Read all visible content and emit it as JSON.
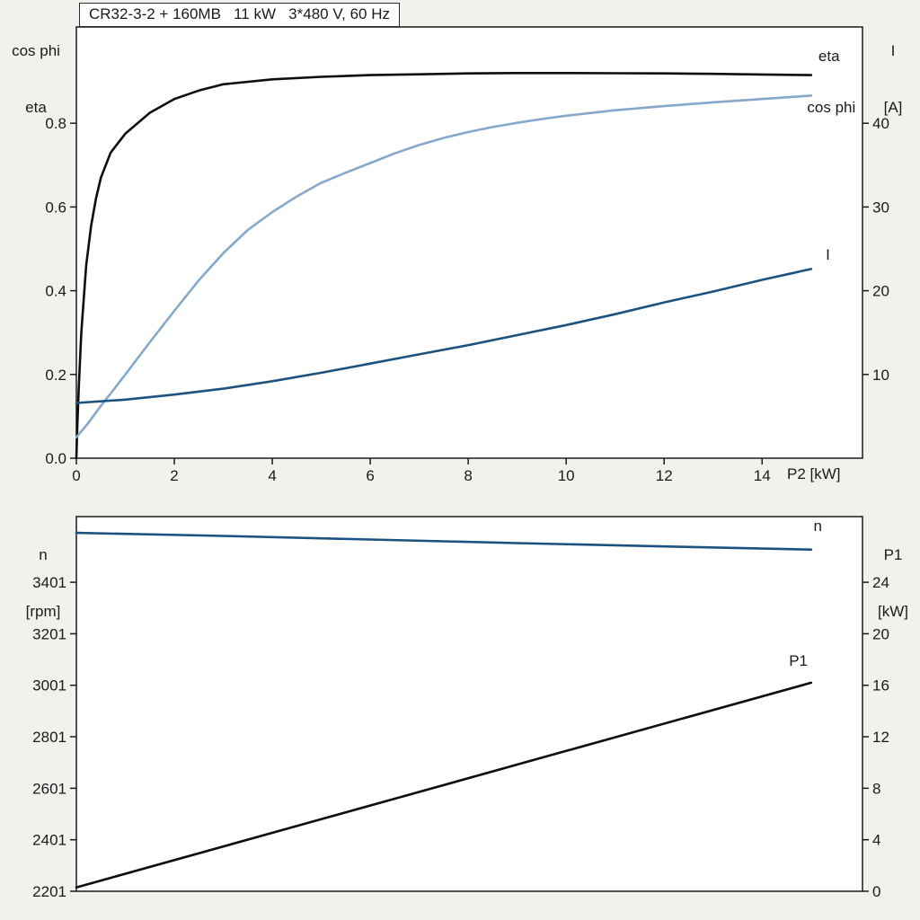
{
  "page": {
    "background": "#f1f2ee",
    "plot_background": "#ffffff",
    "axis_color": "#1a1a1a"
  },
  "title_box": "CR32-3-2 + 160MB   11 kW   3*480 V, 60 Hz",
  "chart_data": [
    {
      "type": "line",
      "title": "CR32-3-2 + 160MB   11 kW   3*480 V, 60 Hz",
      "grid": false,
      "legend_position": "curve-end-labels",
      "x_axis": {
        "label": "P2 [kW]",
        "min": 0,
        "max": 16.05,
        "tick_values": [
          0,
          2,
          4,
          6,
          8,
          10,
          12,
          14
        ],
        "ticks": [
          "0",
          "2",
          "4",
          "6",
          "8",
          "10",
          "12",
          "14"
        ]
      },
      "y_left": {
        "label_lines": [
          "cos phi",
          "eta"
        ],
        "min": 0,
        "max": 1.03,
        "tick_values": [
          0,
          0.2,
          0.4,
          0.6,
          0.8
        ],
        "ticks": [
          "0.0",
          "0.2",
          "0.4",
          "0.6",
          "0.8"
        ]
      },
      "y_right": {
        "label_lines": [
          "I",
          "[A]"
        ],
        "min": 0,
        "max": 51.5,
        "tick_values": [
          10,
          20,
          30,
          40
        ],
        "ticks": [
          "10",
          "20",
          "30",
          "40"
        ]
      },
      "series": [
        {
          "name": "eta",
          "axis": "left",
          "color": "#0d0d0d",
          "label": "eta",
          "label_color": "#0d0d0d",
          "label_pos": [
            15.15,
            0.948
          ],
          "points": [
            [
              0,
              0
            ],
            [
              0.02,
              0.08
            ],
            [
              0.05,
              0.17
            ],
            [
              0.1,
              0.3
            ],
            [
              0.2,
              0.46
            ],
            [
              0.3,
              0.555
            ],
            [
              0.4,
              0.62
            ],
            [
              0.5,
              0.67
            ],
            [
              0.7,
              0.73
            ],
            [
              1,
              0.775
            ],
            [
              1.5,
              0.825
            ],
            [
              2,
              0.858
            ],
            [
              2.5,
              0.878
            ],
            [
              3,
              0.893
            ],
            [
              4,
              0.905
            ],
            [
              5,
              0.911
            ],
            [
              6,
              0.915
            ],
            [
              7,
              0.917
            ],
            [
              8,
              0.919
            ],
            [
              9,
              0.92
            ],
            [
              10,
              0.92
            ],
            [
              11,
              0.9195
            ],
            [
              12,
              0.919
            ],
            [
              13,
              0.918
            ],
            [
              14,
              0.9165
            ],
            [
              15,
              0.915
            ]
          ]
        },
        {
          "name": "cos phi",
          "axis": "left",
          "color": "#85a8cb",
          "label": "cos phi",
          "label_color": "#85a8cb",
          "label_pos": [
            14.92,
            0.826
          ],
          "points": [
            [
              0,
              0.05
            ],
            [
              0.25,
              0.085
            ],
            [
              0.5,
              0.125
            ],
            [
              0.75,
              0.162
            ],
            [
              1,
              0.2
            ],
            [
              1.5,
              0.277
            ],
            [
              2,
              0.352
            ],
            [
              2.5,
              0.425
            ],
            [
              3,
              0.49
            ],
            [
              3.5,
              0.545
            ],
            [
              4,
              0.588
            ],
            [
              4.5,
              0.625
            ],
            [
              5,
              0.658
            ],
            [
              5.5,
              0.682
            ],
            [
              6,
              0.705
            ],
            [
              6.5,
              0.728
            ],
            [
              7,
              0.748
            ],
            [
              7.5,
              0.765
            ],
            [
              8,
              0.779
            ],
            [
              8.5,
              0.791
            ],
            [
              9,
              0.801
            ],
            [
              9.5,
              0.81
            ],
            [
              10,
              0.818
            ],
            [
              11,
              0.831
            ],
            [
              12,
              0.841
            ],
            [
              13,
              0.85
            ],
            [
              14,
              0.858
            ],
            [
              15,
              0.866
            ]
          ]
        },
        {
          "name": "I",
          "axis": "right",
          "color": "#1c527f",
          "label": "I",
          "label_color": "#1c527f",
          "label_pos": [
            15.3,
            23.7
          ],
          "points": [
            [
              0,
              6.6
            ],
            [
              1,
              7.0
            ],
            [
              2,
              7.6
            ],
            [
              3,
              8.3
            ],
            [
              4,
              9.2
            ],
            [
              5,
              10.2
            ],
            [
              6,
              11.3
            ],
            [
              7,
              12.4
            ],
            [
              8,
              13.5
            ],
            [
              9,
              14.7
            ],
            [
              10,
              15.9
            ],
            [
              11,
              17.2
            ],
            [
              12,
              18.6
            ],
            [
              13,
              19.9
            ],
            [
              14,
              21.3
            ],
            [
              15,
              22.6
            ]
          ]
        }
      ]
    },
    {
      "type": "line",
      "title": "",
      "grid": false,
      "legend_position": "curve-end-labels",
      "x_axis": {
        "label": "",
        "min": 0,
        "max": 16.05,
        "tick_values": [],
        "ticks": []
      },
      "y_left": {
        "label_lines": [
          "n",
          "[rpm]"
        ],
        "min": 2201,
        "max": 3656,
        "tick_values": [
          2201,
          2401,
          2601,
          2801,
          3001,
          3201,
          3401
        ],
        "ticks": [
          "2201",
          "2401",
          "2601",
          "2801",
          "3001",
          "3201",
          "3401"
        ]
      },
      "y_right": {
        "label_lines": [
          "P1",
          "[kW]"
        ],
        "min": 0,
        "max": 29.1,
        "tick_values": [
          0,
          4,
          8,
          12,
          16,
          20,
          24
        ],
        "ticks": [
          "0",
          "4",
          "8",
          "12",
          "16",
          "20",
          "24"
        ]
      },
      "series": [
        {
          "name": "n",
          "axis": "left",
          "color": "#1c527f",
          "label": "n",
          "label_color": "#1c527f",
          "label_pos": [
            15.05,
            3601
          ],
          "points": [
            [
              0,
              3593
            ],
            [
              3,
              3581
            ],
            [
              6,
              3567
            ],
            [
              9,
              3553
            ],
            [
              12,
              3540
            ],
            [
              15,
              3528
            ]
          ]
        },
        {
          "name": "P1",
          "axis": "right",
          "color": "#0d0d0d",
          "label": "P1",
          "label_color": "#0d0d0d",
          "label_pos": [
            14.55,
            17.5
          ],
          "points": [
            [
              0,
              0.3
            ],
            [
              5,
              5.6
            ],
            [
              10,
              10.9
            ],
            [
              15,
              16.2
            ]
          ]
        }
      ]
    }
  ]
}
